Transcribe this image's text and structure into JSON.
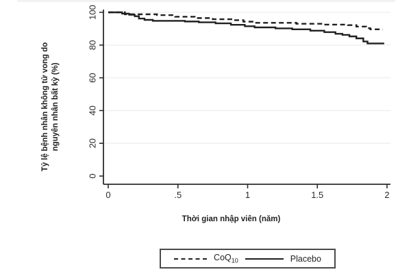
{
  "chart_data": {
    "type": "line",
    "subtype": "kaplan-meier-step",
    "title": "",
    "xlabel": "Thời gian nhập viên (năm)",
    "ylabel": "Tỷ lệ bệnh nhân không tử vong do nguyên nhân bất kỳ (%)",
    "ylabel_lines": [
      "Tỷ lệ bệnh nhân không tử vong do",
      "nguyên nhân bất kỳ (%)"
    ],
    "xlim": [
      0,
      2
    ],
    "ylim": [
      0,
      100
    ],
    "x_ticks": [
      {
        "value": 0,
        "label": "0"
      },
      {
        "value": 0.5,
        "label": ".5"
      },
      {
        "value": 1,
        "label": "1"
      },
      {
        "value": 1.5,
        "label": "1.5"
      },
      {
        "value": 2,
        "label": "2"
      }
    ],
    "y_ticks": [
      {
        "value": 0,
        "label": "0"
      },
      {
        "value": 20,
        "label": "20"
      },
      {
        "value": 40,
        "label": "40"
      },
      {
        "value": 60,
        "label": "60"
      },
      {
        "value": 80,
        "label": "80"
      },
      {
        "value": 100,
        "label": "100"
      }
    ],
    "y_tick_label_rotation": -90,
    "grid": "faint-horizontal",
    "legend_position": "bottom-center",
    "step_mode": "after",
    "series": [
      {
        "name": "CoQ10",
        "display": {
          "base": "CoQ",
          "sub": "10"
        },
        "style": "dashed",
        "color": "#1f1f1f",
        "points": [
          [
            0,
            100
          ],
          [
            0.12,
            98.8
          ],
          [
            0.35,
            98.3
          ],
          [
            0.48,
            97.3
          ],
          [
            0.62,
            96.5
          ],
          [
            0.75,
            95.8
          ],
          [
            0.9,
            95.2
          ],
          [
            0.97,
            94.3
          ],
          [
            1.05,
            93.6
          ],
          [
            1.35,
            93.0
          ],
          [
            1.55,
            92.5
          ],
          [
            1.72,
            92.2
          ],
          [
            1.78,
            91.3
          ],
          [
            1.85,
            90.3
          ],
          [
            1.88,
            89.6
          ],
          [
            1.97,
            89.6
          ]
        ]
      },
      {
        "name": "Placebo",
        "display": {
          "base": "Placebo",
          "sub": ""
        },
        "style": "solid",
        "color": "#1f1f1f",
        "points": [
          [
            0,
            100
          ],
          [
            0.1,
            99.2
          ],
          [
            0.15,
            98.5
          ],
          [
            0.19,
            97.6
          ],
          [
            0.22,
            96.2
          ],
          [
            0.26,
            95.4
          ],
          [
            0.32,
            94.8
          ],
          [
            0.55,
            94.4
          ],
          [
            0.65,
            93.9
          ],
          [
            0.77,
            93.3
          ],
          [
            0.88,
            92.4
          ],
          [
            0.98,
            91.5
          ],
          [
            1.05,
            90.8
          ],
          [
            1.2,
            90.2
          ],
          [
            1.32,
            89.6
          ],
          [
            1.45,
            88.8
          ],
          [
            1.55,
            87.9
          ],
          [
            1.63,
            86.9
          ],
          [
            1.68,
            86.2
          ],
          [
            1.73,
            85.3
          ],
          [
            1.78,
            84.1
          ],
          [
            1.83,
            82.2
          ],
          [
            1.86,
            81.0
          ],
          [
            1.98,
            81.0
          ]
        ]
      }
    ]
  },
  "colors": {
    "curve": "#1f1f1f",
    "axis": "#2b2b2b",
    "tick_label": "#2b2b2b",
    "gridline": "#f0f0f0",
    "legend_border": "#4a4a4a",
    "background": "#ffffff"
  }
}
